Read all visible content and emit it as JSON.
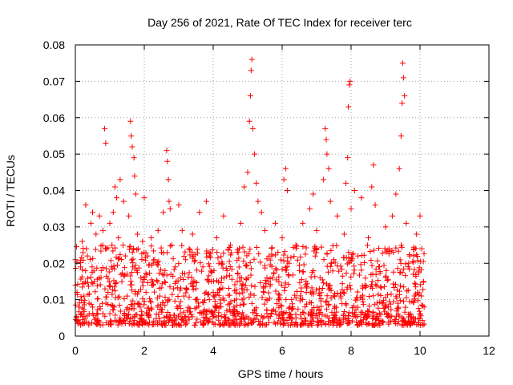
{
  "chart_data": {
    "type": "scatter",
    "title": "Day 256 of 2021, Rate Of TEC Index for receiver terc",
    "xlabel": "GPS time / hours",
    "ylabel": "ROTI / TECUs",
    "xlim": [
      0,
      12
    ],
    "ylim": [
      0,
      0.08
    ],
    "xticks": [
      0,
      2,
      4,
      6,
      8,
      10,
      12
    ],
    "yticks": [
      0,
      0.01,
      0.02,
      0.03,
      0.04,
      0.05,
      0.06,
      0.07,
      0.08
    ],
    "xtick_labels": [
      "0",
      "2",
      "4",
      "6",
      "8",
      "10",
      "12"
    ],
    "ytick_labels": [
      "0",
      "0.01",
      "0.02",
      "0.03",
      "0.04",
      "0.05",
      "0.06",
      "0.07",
      "0.08"
    ],
    "grid": true,
    "marker": "+",
    "marker_color": "#ff0000",
    "series": [
      {
        "name": "ROTI",
        "points": [
          [
            0.0,
            0.021
          ],
          [
            0.05,
            0.012
          ],
          [
            0.1,
            0.008
          ],
          [
            0.15,
            0.019
          ],
          [
            0.2,
            0.026
          ],
          [
            0.25,
            0.011
          ],
          [
            0.3,
            0.036
          ],
          [
            0.35,
            0.022
          ],
          [
            0.4,
            0.009
          ],
          [
            0.45,
            0.031
          ],
          [
            0.5,
            0.034
          ],
          [
            0.55,
            0.015
          ],
          [
            0.6,
            0.028
          ],
          [
            0.65,
            0.006
          ],
          [
            0.7,
            0.033
          ],
          [
            0.75,
            0.018
          ],
          [
            0.8,
            0.029
          ],
          [
            0.85,
            0.057
          ],
          [
            0.88,
            0.053
          ],
          [
            0.9,
            0.024
          ],
          [
            0.95,
            0.012
          ],
          [
            1.0,
            0.031
          ],
          [
            1.05,
            0.019
          ],
          [
            1.1,
            0.034
          ],
          [
            1.15,
            0.041
          ],
          [
            1.2,
            0.038
          ],
          [
            1.25,
            0.027
          ],
          [
            1.3,
            0.043
          ],
          [
            1.35,
            0.015
          ],
          [
            1.4,
            0.037
          ],
          [
            1.45,
            0.022
          ],
          [
            1.5,
            0.011
          ],
          [
            1.55,
            0.033
          ],
          [
            1.6,
            0.059
          ],
          [
            1.62,
            0.055
          ],
          [
            1.65,
            0.052
          ],
          [
            1.7,
            0.049
          ],
          [
            1.72,
            0.044
          ],
          [
            1.75,
            0.039
          ],
          [
            1.8,
            0.028
          ],
          [
            1.85,
            0.009
          ],
          [
            1.9,
            0.016
          ],
          [
            1.95,
            0.026
          ],
          [
            2.0,
            0.038
          ],
          [
            2.05,
            0.012
          ],
          [
            2.1,
            0.022
          ],
          [
            2.15,
            0.007
          ],
          [
            2.2,
            0.027
          ],
          [
            2.25,
            0.014
          ],
          [
            2.3,
            0.021
          ],
          [
            2.35,
            0.006
          ],
          [
            2.4,
            0.029
          ],
          [
            2.45,
            0.011
          ],
          [
            2.5,
            0.023
          ],
          [
            2.55,
            0.034
          ],
          [
            2.6,
            0.018
          ],
          [
            2.65,
            0.051
          ],
          [
            2.67,
            0.048
          ],
          [
            2.7,
            0.043
          ],
          [
            2.72,
            0.037
          ],
          [
            2.75,
            0.035
          ],
          [
            2.8,
            0.025
          ],
          [
            2.85,
            0.013
          ],
          [
            2.9,
            0.019
          ],
          [
            2.95,
            0.008
          ],
          [
            3.0,
            0.036
          ],
          [
            3.05,
            0.016
          ],
          [
            3.1,
            0.029
          ],
          [
            3.15,
            0.011
          ],
          [
            3.2,
            0.021
          ],
          [
            3.25,
            0.007
          ],
          [
            3.3,
            0.024
          ],
          [
            3.4,
            0.028
          ],
          [
            3.5,
            0.013
          ],
          [
            3.6,
            0.034
          ],
          [
            3.7,
            0.019
          ],
          [
            3.8,
            0.037
          ],
          [
            3.9,
            0.022
          ],
          [
            4.0,
            0.012
          ],
          [
            4.1,
            0.027
          ],
          [
            4.2,
            0.009
          ],
          [
            4.3,
            0.033
          ],
          [
            4.4,
            0.018
          ],
          [
            4.5,
            0.025
          ],
          [
            4.6,
            0.008
          ],
          [
            4.7,
            0.023
          ],
          [
            4.8,
            0.031
          ],
          [
            4.9,
            0.041
          ],
          [
            5.0,
            0.045
          ],
          [
            5.05,
            0.059
          ],
          [
            5.08,
            0.066
          ],
          [
            5.1,
            0.073
          ],
          [
            5.12,
            0.076
          ],
          [
            5.15,
            0.057
          ],
          [
            5.2,
            0.05
          ],
          [
            5.25,
            0.042
          ],
          [
            5.3,
            0.037
          ],
          [
            5.4,
            0.034
          ],
          [
            5.5,
            0.029
          ],
          [
            5.6,
            0.015
          ],
          [
            5.7,
            0.022
          ],
          [
            5.8,
            0.031
          ],
          [
            5.9,
            0.01
          ],
          [
            6.0,
            0.027
          ],
          [
            6.05,
            0.043
          ],
          [
            6.1,
            0.046
          ],
          [
            6.15,
            0.04
          ],
          [
            6.2,
            0.02
          ],
          [
            6.3,
            0.008
          ],
          [
            6.4,
            0.025
          ],
          [
            6.5,
            0.018
          ],
          [
            6.6,
            0.031
          ],
          [
            6.7,
            0.012
          ],
          [
            6.8,
            0.035
          ],
          [
            6.9,
            0.039
          ],
          [
            7.0,
            0.029
          ],
          [
            7.1,
            0.016
          ],
          [
            7.2,
            0.043
          ],
          [
            7.25,
            0.057
          ],
          [
            7.28,
            0.054
          ],
          [
            7.3,
            0.05
          ],
          [
            7.35,
            0.046
          ],
          [
            7.4,
            0.037
          ],
          [
            7.5,
            0.021
          ],
          [
            7.6,
            0.033
          ],
          [
            7.7,
            0.011
          ],
          [
            7.8,
            0.028
          ],
          [
            7.85,
            0.042
          ],
          [
            7.9,
            0.049
          ],
          [
            7.92,
            0.063
          ],
          [
            7.95,
            0.069
          ],
          [
            7.97,
            0.07
          ],
          [
            8.0,
            0.035
          ],
          [
            8.1,
            0.04
          ],
          [
            8.2,
            0.022
          ],
          [
            8.3,
            0.038
          ],
          [
            8.4,
            0.014
          ],
          [
            8.5,
            0.027
          ],
          [
            8.6,
            0.041
          ],
          [
            8.65,
            0.047
          ],
          [
            8.7,
            0.036
          ],
          [
            8.8,
            0.019
          ],
          [
            8.9,
            0.009
          ],
          [
            9.0,
            0.03
          ],
          [
            9.1,
            0.024
          ],
          [
            9.2,
            0.033
          ],
          [
            9.3,
            0.039
          ],
          [
            9.4,
            0.046
          ],
          [
            9.45,
            0.055
          ],
          [
            9.48,
            0.064
          ],
          [
            9.5,
            0.075
          ],
          [
            9.52,
            0.071
          ],
          [
            9.55,
            0.066
          ],
          [
            9.6,
            0.031
          ],
          [
            9.7,
            0.022
          ],
          [
            9.8,
            0.017
          ],
          [
            9.9,
            0.028
          ],
          [
            10.0,
            0.033
          ],
          [
            10.05,
            0.024
          ],
          [
            10.1,
            0.015
          ],
          [
            10.12,
            0.008
          ]
        ]
      }
    ],
    "dense_band": {
      "x_range": [
        0.0,
        10.12
      ],
      "y_range": [
        0.003,
        0.025
      ],
      "typical": 0.01
    }
  }
}
